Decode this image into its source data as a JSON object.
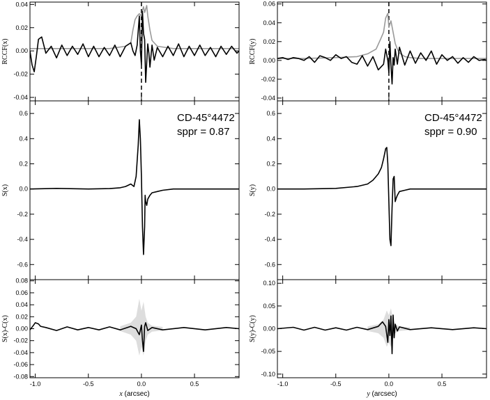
{
  "chart_data": [
    {
      "id": "left",
      "x_axis": {
        "label_var": "x",
        "label_unit": " (arcsec)",
        "xlim": [
          -1.05,
          0.92
        ],
        "ticks": [
          -1.0,
          -0.5,
          0.0,
          0.5
        ],
        "tick_labels": [
          "-1.0",
          "-0.5",
          "0.0",
          "0.5"
        ]
      },
      "object_name": "CD-45°4472",
      "sppr_text": "sppr = 0.87",
      "panels": [
        {
          "type": "line",
          "role": "rccf",
          "ylabel": "RCCF(x)",
          "ylim": [
            -0.043,
            0.042
          ],
          "yticks": [
            -0.04,
            -0.02,
            0.0,
            0.02,
            0.04
          ],
          "ytick_labels": [
            "-0.04",
            "-0.02",
            "0.00",
            "0.02",
            "0.04"
          ],
          "vline_x": 0.0,
          "series": [
            {
              "color": "#999999",
              "x": [
                -1.05,
                -0.8,
                -0.5,
                -0.3,
                -0.15,
                -0.1,
                -0.08,
                -0.06,
                -0.04,
                -0.02,
                0.0,
                0.01,
                0.02,
                0.03,
                0.04,
                0.05,
                0.06,
                0.08,
                0.1,
                0.15,
                0.3,
                0.6,
                0.92
              ],
              "y": [
                0.002,
                0.002,
                0.002,
                0.002,
                0.004,
                0.007,
                0.018,
                0.027,
                0.03,
                0.032,
                0.03,
                0.035,
                0.038,
                0.033,
                0.036,
                0.039,
                0.03,
                0.018,
                0.009,
                0.004,
                0.002,
                0.002,
                0.002
              ]
            },
            {
              "color": "#000000",
              "x": [
                -1.05,
                -1.03,
                -1.01,
                -0.99,
                -0.97,
                -0.94,
                -0.9,
                -0.85,
                -0.8,
                -0.75,
                -0.7,
                -0.65,
                -0.6,
                -0.55,
                -0.5,
                -0.45,
                -0.4,
                -0.35,
                -0.3,
                -0.25,
                -0.2,
                -0.15,
                -0.1,
                -0.08,
                -0.06,
                -0.04,
                -0.02,
                -0.01,
                0.0,
                0.01,
                0.02,
                0.03,
                0.04,
                0.05,
                0.06,
                0.07,
                0.08,
                0.1,
                0.12,
                0.15,
                0.2,
                0.25,
                0.3,
                0.35,
                0.4,
                0.45,
                0.5,
                0.55,
                0.6,
                0.65,
                0.7,
                0.75,
                0.8,
                0.85,
                0.9,
                0.92
              ],
              "y": [
                0.0,
                -0.012,
                -0.018,
                -0.005,
                0.01,
                0.012,
                -0.002,
                0.004,
                -0.006,
                0.005,
                -0.004,
                0.004,
                -0.003,
                0.006,
                -0.005,
                0.004,
                -0.005,
                0.003,
                -0.004,
                0.005,
                -0.005,
                0.004,
                0.007,
                0.0,
                -0.004,
                0.005,
                0.03,
                0.0,
                -0.012,
                0.034,
                0.015,
                0.01,
                -0.027,
                -0.01,
                0.006,
                -0.002,
                -0.014,
                0.005,
                -0.008,
                0.003,
                -0.005,
                0.004,
                -0.004,
                0.006,
                -0.005,
                0.004,
                -0.004,
                0.005,
                -0.004,
                0.003,
                -0.005,
                0.004,
                -0.003,
                0.004,
                -0.002,
                0.0
              ]
            }
          ]
        },
        {
          "type": "line",
          "role": "signal",
          "ylabel": "S(x)",
          "ylim": [
            -0.72,
            0.7
          ],
          "yticks": [
            -0.6,
            -0.4,
            -0.2,
            0.0,
            0.2,
            0.4,
            0.6
          ],
          "ytick_labels": [
            "-0.6",
            "-0.4",
            "-0.2",
            "0.0",
            "0.2",
            "0.4",
            "0.6"
          ],
          "series": [
            {
              "color": "#000000",
              "x": [
                -1.05,
                -0.8,
                -0.5,
                -0.3,
                -0.2,
                -0.15,
                -0.1,
                -0.07,
                -0.05,
                -0.03,
                -0.02,
                -0.01,
                0.0,
                0.01,
                0.02,
                0.03,
                0.035,
                0.04,
                0.05,
                0.06,
                0.08,
                0.1,
                0.15,
                0.2,
                0.3,
                0.5,
                0.92
              ],
              "y": [
                0.0,
                0.005,
                0.0,
                0.003,
                0.01,
                0.02,
                0.04,
                0.02,
                0.1,
                0.35,
                0.55,
                0.4,
                0.1,
                -0.3,
                -0.52,
                -0.3,
                -0.05,
                -0.1,
                -0.13,
                -0.08,
                -0.05,
                -0.03,
                -0.02,
                -0.01,
                0.0,
                0.0,
                0.0
              ]
            }
          ]
        },
        {
          "type": "line",
          "role": "residual",
          "ylabel": "S(x)-C(x)",
          "ylim": [
            -0.082,
            0.082
          ],
          "yticks": [
            -0.08,
            -0.06,
            -0.04,
            -0.02,
            0.0,
            0.02,
            0.04,
            0.06,
            0.08
          ],
          "ytick_labels": [
            "-0.08",
            "-0.06",
            "-0.04",
            "-0.02",
            "0.00",
            "0.02",
            "0.04",
            "0.06",
            "0.08"
          ],
          "band": {
            "color": "#dddddd",
            "x": [
              -0.2,
              -0.1,
              -0.05,
              -0.02,
              0.0,
              0.02,
              0.04,
              0.06,
              0.1,
              0.2
            ],
            "lower": [
              -0.004,
              -0.01,
              -0.02,
              -0.045,
              -0.03,
              -0.045,
              -0.02,
              -0.01,
              -0.005,
              -0.003
            ],
            "upper": [
              0.004,
              0.01,
              0.02,
              0.05,
              0.03,
              0.045,
              0.02,
              0.01,
              0.005,
              0.003
            ]
          },
          "series": [
            {
              "color": "#000000",
              "x": [
                -1.05,
                -1.02,
                -1.0,
                -0.97,
                -0.95,
                -0.9,
                -0.8,
                -0.7,
                -0.6,
                -0.5,
                -0.4,
                -0.3,
                -0.2,
                -0.1,
                -0.05,
                -0.02,
                0.0,
                0.01,
                0.02,
                0.03,
                0.04,
                0.06,
                0.1,
                0.2,
                0.4,
                0.6,
                0.8,
                0.92
              ],
              "y": [
                -0.002,
                0.005,
                0.01,
                0.008,
                0.004,
                0.002,
                -0.003,
                0.003,
                -0.002,
                0.002,
                -0.002,
                0.003,
                -0.002,
                0.004,
                0.0,
                -0.01,
                0.006,
                -0.02,
                -0.038,
                0.004,
                0.01,
                -0.003,
                0.002,
                -0.002,
                0.002,
                -0.002,
                0.002,
                0.0
              ]
            }
          ]
        }
      ]
    },
    {
      "id": "right",
      "x_axis": {
        "label_var": "y",
        "label_unit": " (arcsec)",
        "xlim": [
          -1.05,
          0.92
        ],
        "ticks": [
          -1.0,
          -0.5,
          0.0,
          0.5
        ],
        "tick_labels": [
          "-1.0",
          "-0.5",
          "0.0",
          "0.5"
        ]
      },
      "object_name": "CD-45°4472",
      "sppr_text": "sppr = 0.90",
      "panels": [
        {
          "type": "line",
          "role": "rccf",
          "ylabel": "RCCF(y)",
          "ylim": [
            -0.043,
            0.062
          ],
          "yticks": [
            -0.04,
            -0.02,
            0.0,
            0.02,
            0.04,
            0.06
          ],
          "ytick_labels": [
            "-0.04",
            "-0.02",
            "0.00",
            "0.02",
            "0.04",
            "0.06"
          ],
          "vline_x": 0.0,
          "series": [
            {
              "color": "#999999",
              "x": [
                -1.05,
                -0.8,
                -0.5,
                -0.3,
                -0.2,
                -0.12,
                -0.08,
                -0.05,
                -0.03,
                -0.01,
                0.0,
                0.02,
                0.04,
                0.06,
                0.08,
                0.1,
                0.15,
                0.2,
                0.3,
                0.6,
                0.92
              ],
              "y": [
                0.002,
                0.002,
                0.003,
                0.004,
                0.007,
                0.012,
                0.022,
                0.03,
                0.045,
                0.05,
                0.035,
                0.042,
                0.03,
                0.018,
                0.012,
                0.008,
                0.004,
                0.003,
                0.002,
                0.002,
                0.002
              ]
            },
            {
              "color": "#000000",
              "x": [
                -1.05,
                -1.0,
                -0.95,
                -0.9,
                -0.85,
                -0.8,
                -0.75,
                -0.7,
                -0.65,
                -0.6,
                -0.55,
                -0.5,
                -0.45,
                -0.4,
                -0.35,
                -0.3,
                -0.25,
                -0.2,
                -0.15,
                -0.1,
                -0.05,
                -0.03,
                -0.01,
                0.0,
                0.01,
                0.02,
                0.03,
                0.04,
                0.05,
                0.06,
                0.08,
                0.1,
                0.15,
                0.2,
                0.25,
                0.3,
                0.35,
                0.4,
                0.45,
                0.5,
                0.55,
                0.6,
                0.65,
                0.7,
                0.75,
                0.8,
                0.85,
                0.9,
                0.92
              ],
              "y": [
                0.002,
                0.003,
                0.001,
                0.003,
                0.002,
                0.0,
                0.004,
                -0.002,
                0.005,
                0.003,
                0.0,
                0.006,
                0.002,
                0.004,
                -0.002,
                -0.004,
                0.005,
                -0.006,
                0.004,
                -0.01,
                -0.004,
                0.012,
                0.0,
                -0.013,
                0.02,
                -0.005,
                -0.025,
                0.003,
                -0.005,
                0.012,
                -0.004,
                0.014,
                -0.005,
                0.01,
                -0.003,
                0.008,
                0.0,
                0.01,
                -0.004,
                0.006,
                0.0,
                0.004,
                -0.003,
                0.003,
                -0.002,
                0.004,
                0.0,
                0.001,
                0.0
              ]
            }
          ]
        },
        {
          "type": "line",
          "role": "signal",
          "ylabel": "S(y)",
          "ylim": [
            -0.72,
            0.7
          ],
          "yticks": [
            -0.6,
            -0.4,
            -0.2,
            0.0,
            0.2,
            0.4,
            0.6
          ],
          "ytick_labels": [
            "-0.6",
            "-0.4",
            "-0.2",
            "0.0",
            "0.2",
            "0.4",
            "0.6"
          ],
          "series": [
            {
              "color": "#000000",
              "x": [
                -1.05,
                -0.8,
                -0.5,
                -0.3,
                -0.2,
                -0.15,
                -0.1,
                -0.07,
                -0.05,
                -0.03,
                -0.02,
                -0.01,
                0.0,
                0.01,
                0.02,
                0.03,
                0.04,
                0.05,
                0.06,
                0.07,
                0.08,
                0.1,
                0.15,
                0.2,
                0.3,
                0.5,
                0.92
              ],
              "y": [
                0.0,
                0.0,
                0.005,
                0.02,
                0.04,
                0.07,
                0.12,
                0.17,
                0.24,
                0.32,
                0.33,
                0.2,
                -0.1,
                -0.4,
                -0.45,
                -0.15,
                0.08,
                0.1,
                -0.1,
                -0.07,
                -0.05,
                -0.02,
                -0.01,
                0.0,
                0.0,
                0.0,
                0.0
              ]
            }
          ]
        },
        {
          "type": "line",
          "role": "residual",
          "ylabel": "S(y)-C(y)",
          "ylim": [
            -0.108,
            0.108
          ],
          "yticks": [
            -0.1,
            -0.05,
            0.0,
            0.05,
            0.1
          ],
          "ytick_labels": [
            "-0.10",
            "-0.05",
            "0.00",
            "0.05",
            "0.10"
          ],
          "band": {
            "color": "#dddddd",
            "x": [
              -0.2,
              -0.1,
              -0.05,
              -0.02,
              0.0,
              0.02,
              0.04,
              0.06,
              0.1,
              0.2
            ],
            "lower": [
              -0.005,
              -0.01,
              -0.02,
              -0.04,
              -0.03,
              -0.04,
              -0.02,
              -0.01,
              -0.005,
              -0.003
            ],
            "upper": [
              0.005,
              0.01,
              0.02,
              0.04,
              0.03,
              0.045,
              0.02,
              0.01,
              0.005,
              0.003
            ]
          },
          "series": [
            {
              "color": "#000000",
              "x": [
                -1.05,
                -0.9,
                -0.8,
                -0.7,
                -0.6,
                -0.5,
                -0.4,
                -0.3,
                -0.2,
                -0.1,
                -0.06,
                -0.03,
                -0.01,
                0.0,
                0.01,
                0.02,
                0.03,
                0.04,
                0.05,
                0.06,
                0.08,
                0.1,
                0.2,
                0.4,
                0.6,
                0.8,
                0.92
              ],
              "y": [
                0.0,
                0.003,
                -0.003,
                0.003,
                -0.003,
                0.002,
                -0.003,
                0.003,
                -0.002,
                0.005,
                0.015,
                0.005,
                -0.03,
                0.02,
                -0.015,
                0.028,
                -0.055,
                0.03,
                -0.02,
                0.01,
                -0.005,
                0.004,
                -0.002,
                0.002,
                -0.002,
                0.002,
                0.0
              ]
            }
          ]
        }
      ]
    }
  ]
}
